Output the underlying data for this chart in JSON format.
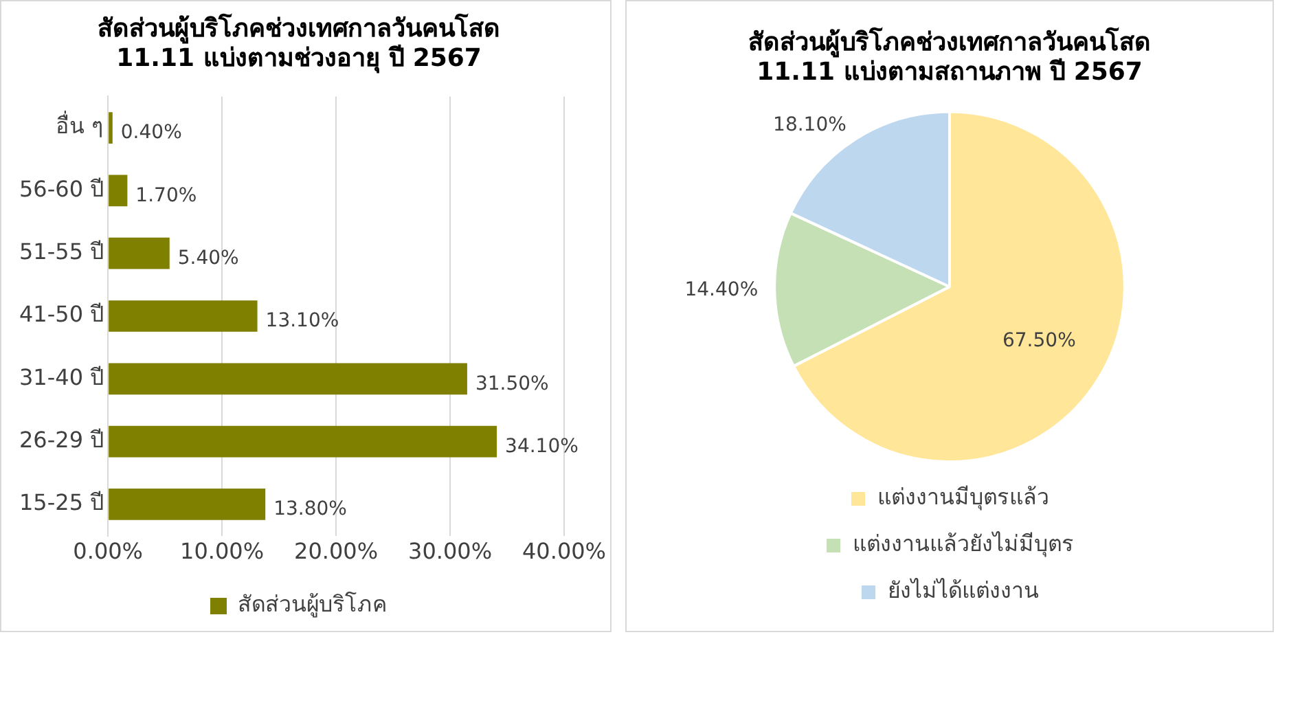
{
  "chart_data": [
    {
      "type": "bar",
      "orientation": "horizontal",
      "title": "สัดส่วนผู้บริโภคช่วงเทศกาลวันคนโสด\n11.11 แบ่งตามช่วงอายุ ปี 2567",
      "categories": [
        "อื่น ๆ",
        "56-60 ปี",
        "51-55 ปี",
        "41-50 ปี",
        "31-40 ปี",
        "26-29 ปี",
        "15-25 ปี"
      ],
      "series": [
        {
          "name": "สัดส่วนผู้บริโภค",
          "color": "#7f7f00",
          "values": [
            0.4,
            1.7,
            5.4,
            13.1,
            31.5,
            34.1,
            13.8
          ],
          "value_labels": [
            "0.40%",
            "1.70%",
            "5.40%",
            "13.10%",
            "31.50%",
            "34.10%",
            "13.80%"
          ]
        }
      ],
      "xlim": [
        0,
        40
      ],
      "xticks": [
        {
          "value": 0,
          "label": "0.00%"
        },
        {
          "value": 10,
          "label": "10.00%"
        },
        {
          "value": 20,
          "label": "20.00%"
        },
        {
          "value": 30,
          "label": "30.00%"
        },
        {
          "value": 40,
          "label": "40.00%"
        }
      ],
      "grid": "x",
      "legend": "bottom"
    },
    {
      "type": "pie",
      "title": "สัดส่วนผู้บริโภคช่วงเทศกาลวันคนโสด\n11.11 แบ่งตามสถานภาพ ปี 2567",
      "categories": [
        "แต่งงานมีบุตรแล้ว",
        "แต่งงานแล้วยังไม่มีบุตร",
        "ยังไม่ได้แต่งงาน"
      ],
      "values": [
        67.5,
        14.4,
        18.1
      ],
      "colors": [
        "#ffe699",
        "#c5e0b4",
        "#bdd7ee"
      ],
      "value_labels": [
        "67.50%",
        "14.40%",
        "18.10%"
      ],
      "legend": "bottom"
    }
  ]
}
